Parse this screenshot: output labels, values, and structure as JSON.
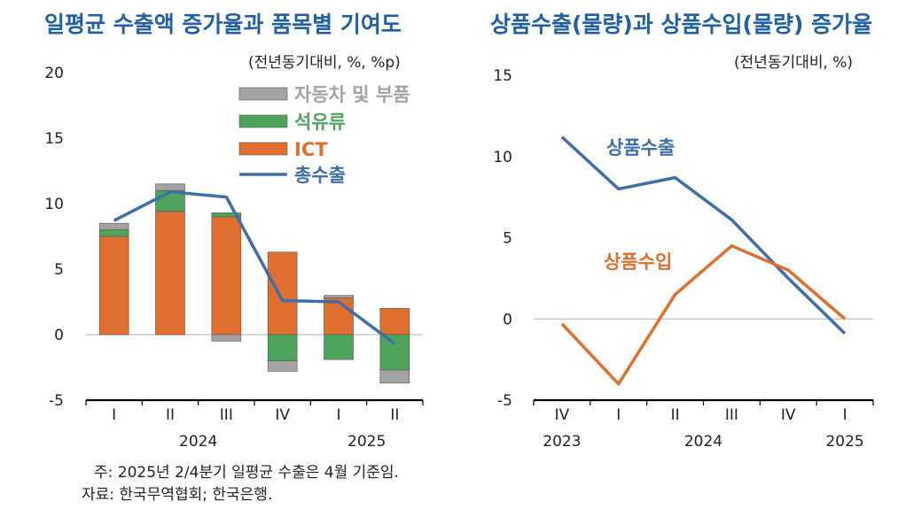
{
  "left_panel": {
    "title": "일평균 수출액 증가율과 품목별 기여도",
    "unit": "(전년동기대비, %, %p)"
  },
  "right_panel": {
    "title": "상품수출(물량)과 상품수입(물량) 증가율",
    "unit": "(전년동기대비, %)"
  },
  "notes": {
    "note": "주: 2025년 2/4분기 일평균 수출은 4월 기준임.",
    "source": "자료: 한국무역협회; 한국은행."
  },
  "colors": {
    "title": "#1f5fa3",
    "auto": "#a3a3a3",
    "petro": "#4ea45a",
    "ict": "#e06e2e",
    "total": "#3e6ea8",
    "exports": "#3e6ea8",
    "imports": "#e06e2e"
  },
  "chart_data": [
    {
      "type": "bar",
      "stacked": true,
      "categories": [
        "I",
        "II",
        "III",
        "IV",
        "I",
        "II"
      ],
      "year_labels": [
        {
          "label": "2024",
          "category_index": 1.5
        },
        {
          "label": "2025",
          "category_index": 4.5
        }
      ],
      "ylim": [
        -5,
        20
      ],
      "yticks": [
        -5,
        0,
        5,
        10,
        15,
        20
      ],
      "legend_position": "top-right",
      "series": [
        {
          "name": "자동차 및 부품",
          "kind": "bar",
          "color_key": "auto",
          "values": [
            0.5,
            0.5,
            -0.5,
            -0.8,
            0.2,
            -1.0
          ]
        },
        {
          "name": "석유류",
          "kind": "bar",
          "color_key": "petro",
          "values": [
            0.5,
            1.6,
            0.3,
            -2.0,
            -1.9,
            -2.7
          ]
        },
        {
          "name": "ICT",
          "kind": "bar",
          "color_key": "ict",
          "values": [
            7.5,
            9.4,
            9.0,
            6.3,
            2.8,
            2.0
          ]
        },
        {
          "name": "총수출",
          "kind": "line",
          "color_key": "total",
          "values": [
            8.7,
            10.9,
            10.5,
            2.6,
            2.5,
            -0.7
          ]
        }
      ]
    },
    {
      "type": "line",
      "categories": [
        "IV",
        "I",
        "II",
        "III",
        "IV",
        "I"
      ],
      "year_labels": [
        {
          "label": "2023",
          "category_index": 0
        },
        {
          "label": "2024",
          "category_index": 2.5
        },
        {
          "label": "2025",
          "category_index": 5
        }
      ],
      "ylim": [
        -5,
        15
      ],
      "yticks": [
        -5,
        0,
        5,
        10,
        15
      ],
      "zero_line": true,
      "series": [
        {
          "name": "상품수출",
          "color_key": "exports",
          "values": [
            11.2,
            8.0,
            8.7,
            6.1,
            2.5,
            -0.9
          ]
        },
        {
          "name": "상품수입",
          "color_key": "imports",
          "values": [
            -0.3,
            -4.0,
            1.5,
            4.5,
            3.0,
            0.0
          ]
        }
      ]
    }
  ]
}
